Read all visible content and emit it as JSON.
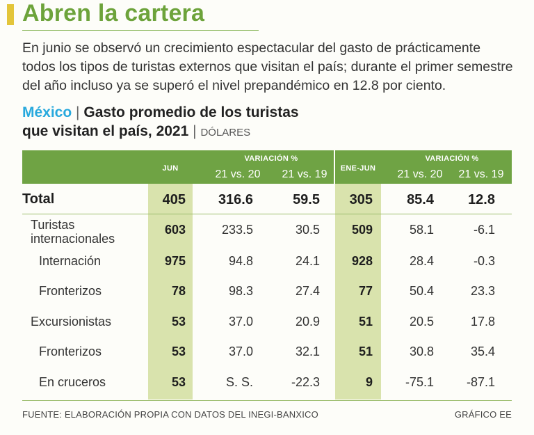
{
  "headline": "Abren la cartera",
  "intro": "En junio se observó un crecimiento espectacular del gasto de prácticamente todos los tipos de turistas externos que visitan el país; durante el primer semestre del año incluso ya se superó el nivel prepandémico en 12.8 por ciento.",
  "chart": {
    "country": "México",
    "separator": "|",
    "title_line1": "Gasto promedio de los turistas",
    "title_line2": "que visitan el país, 2021",
    "unit": "DÓLARES"
  },
  "table": {
    "headers": {
      "jun": "JUN",
      "variacion1": "VARIACIÓN %",
      "jun_21v20": "21 vs. 20",
      "jun_21v19": "21 vs. 19",
      "enejun": "ENE-JUN",
      "variacion2": "VARIACIÓN %",
      "ej_21v20": "21 vs. 20",
      "ej_21v19": "21 vs. 19"
    },
    "rows": [
      {
        "label": "Total",
        "jun": "405",
        "jun_v20": "316.6",
        "jun_v19": "59.5",
        "ej": "305",
        "ej_v20": "85.4",
        "ej_v19": "12.8"
      },
      {
        "label": "Turistas internacionales",
        "jun": "603",
        "jun_v20": "233.5",
        "jun_v19": "30.5",
        "ej": "509",
        "ej_v20": "58.1",
        "ej_v19": "-6.1"
      },
      {
        "label": "Internación",
        "jun": "975",
        "jun_v20": "94.8",
        "jun_v19": "24.1",
        "ej": "928",
        "ej_v20": "28.4",
        "ej_v19": "-0.3"
      },
      {
        "label": "Fronterizos",
        "jun": "78",
        "jun_v20": "98.3",
        "jun_v19": "27.4",
        "ej": "77",
        "ej_v20": "50.4",
        "ej_v19": "23.3"
      },
      {
        "label": "Excursionistas",
        "jun": "53",
        "jun_v20": "37.0",
        "jun_v19": "20.9",
        "ej": "51",
        "ej_v20": "20.5",
        "ej_v19": "17.8"
      },
      {
        "label": "Fronterizos",
        "jun": "53",
        "jun_v20": "37.0",
        "jun_v19": "32.1",
        "ej": "51",
        "ej_v20": "30.8",
        "ej_v19": "35.4"
      },
      {
        "label": "En cruceros",
        "jun": "53",
        "jun_v20": "S. S.",
        "jun_v19": "-22.3",
        "ej": "9",
        "ej_v20": "-75.1",
        "ej_v19": "-87.1"
      }
    ]
  },
  "footer": {
    "source": "FUENTE: ELABORACIÓN PROPIA CON DATOS DEL INEGI-BANXICO",
    "credit": "GRÁFICO EE"
  },
  "colors": {
    "headline": "#6da33b",
    "header_band": "#6fa344",
    "highlight_column": "#d9e3ad",
    "country": "#28a9dd",
    "accent": "#e3c53a"
  }
}
